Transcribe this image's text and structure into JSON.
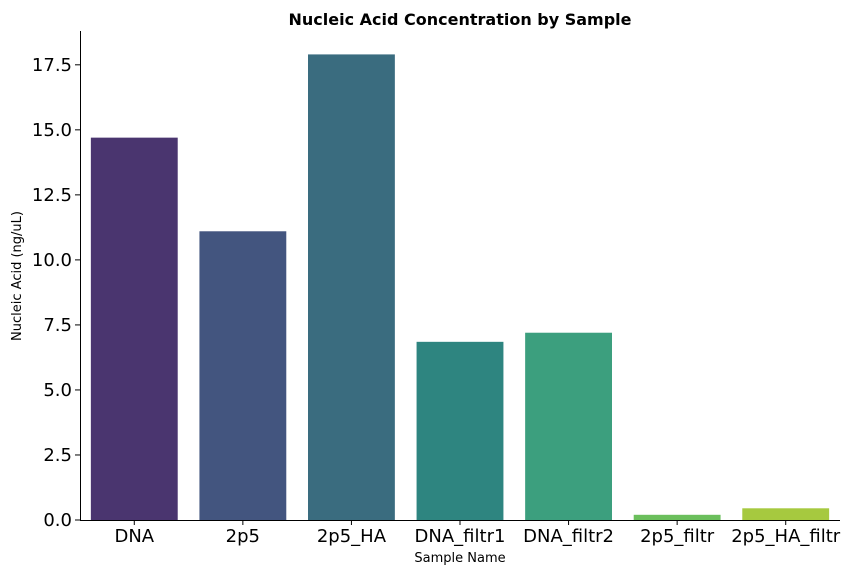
{
  "chart_data": {
    "type": "bar",
    "title": "Nucleic Acid Concentration by Sample",
    "xlabel": "Sample Name",
    "ylabel": "Nucleic Acid (ng/uL)",
    "categories": [
      "DNA",
      "2p5",
      "2p5_HA",
      "DNA_filtr1",
      "DNA_filtr2",
      "2p5_filtr",
      "2p5_HA_filtr"
    ],
    "values": [
      14.7,
      11.1,
      17.9,
      6.85,
      7.2,
      0.2,
      0.45
    ],
    "colors": [
      "#4a356f",
      "#43557f",
      "#3a6c7f",
      "#2e8580",
      "#3c9f7e",
      "#6bbf5c",
      "#a6c93f"
    ],
    "ylim": [
      0,
      18.8
    ],
    "yticks": [
      "0.0",
      "2.5",
      "5.0",
      "7.5",
      "10.0",
      "12.5",
      "15.0",
      "17.5"
    ],
    "grid": false,
    "legend": "none"
  }
}
